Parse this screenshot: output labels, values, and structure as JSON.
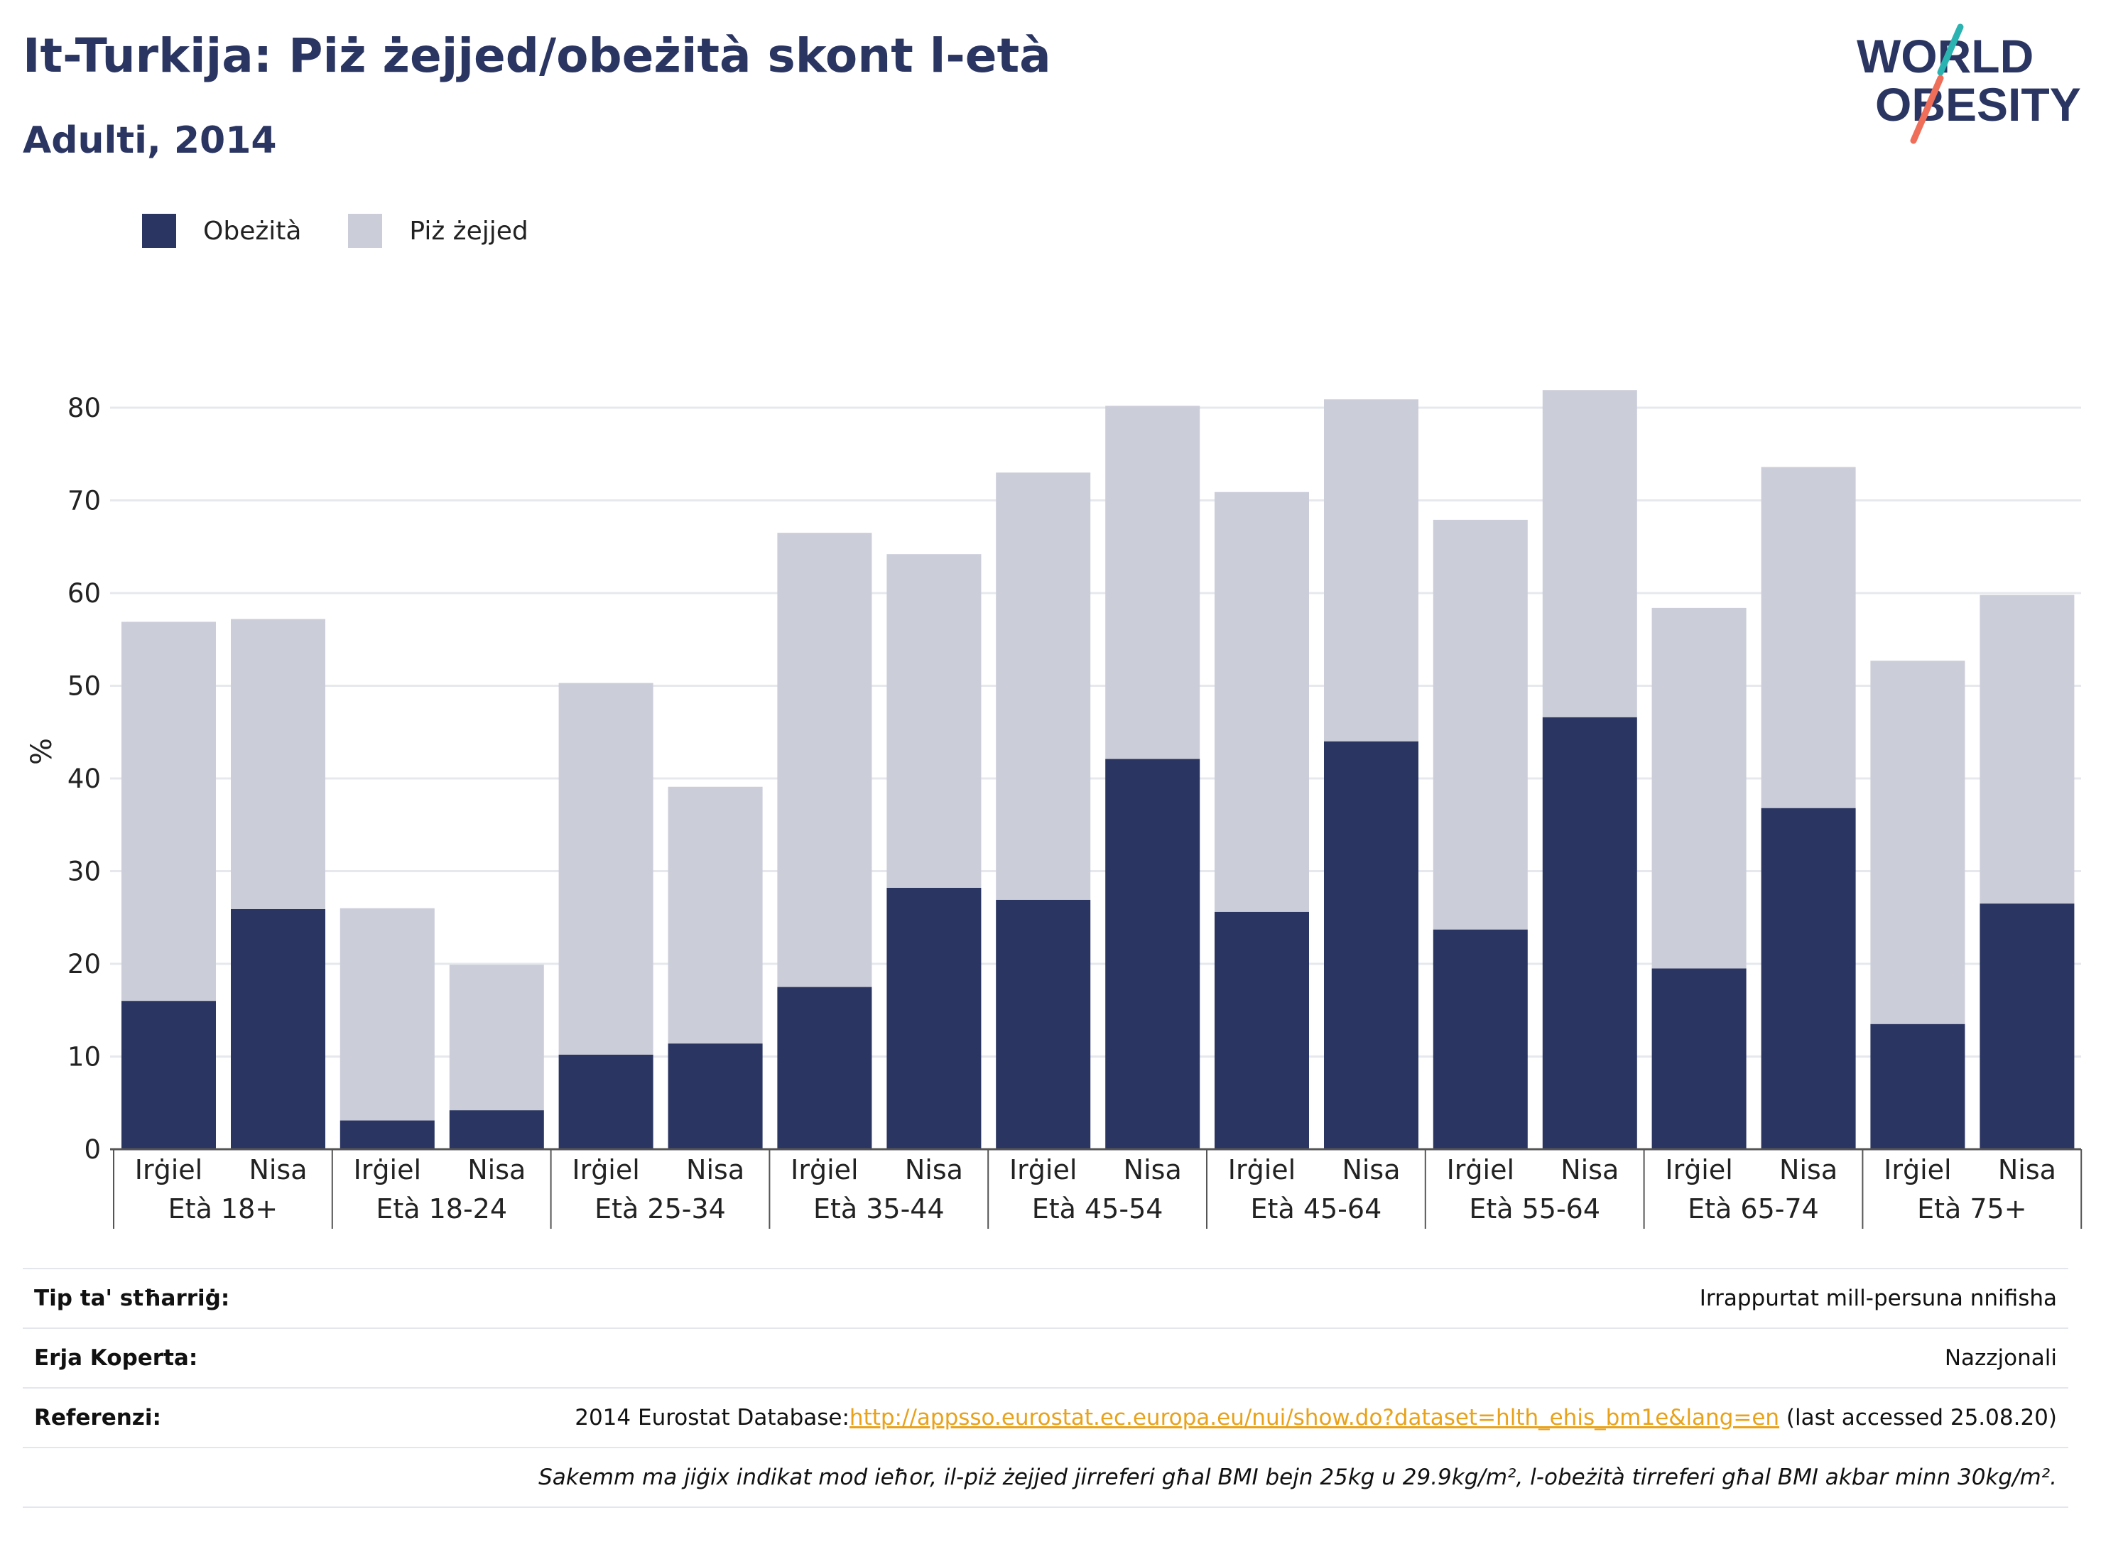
{
  "title": "It-Turkija: Piż żejjed/obeżità skont l-età",
  "subtitle": "Adulti, 2014",
  "logo": {
    "line1": "WORLD",
    "line2": "OBESITY"
  },
  "colors": {
    "obesity": "#2a3561",
    "overweight": "#cbcdd9",
    "text": "#2a3561",
    "link": "#e8a21b"
  },
  "legend": [
    {
      "label": "Obeżità",
      "color": "#2a3561"
    },
    {
      "label": "Piż żejjed",
      "color": "#cbcdd9"
    }
  ],
  "chart_data": {
    "type": "bar",
    "stacked": true,
    "ylabel": "%",
    "ylim": [
      0,
      82
    ],
    "yticks": [
      0,
      10,
      20,
      30,
      40,
      50,
      60,
      70,
      80
    ],
    "grid": true,
    "legend_position": "top-left",
    "groups": [
      "Età 18+",
      "Età 18-24",
      "Età 25-34",
      "Età 35-44",
      "Età 45-54",
      "Età 45-64",
      "Età 55-64",
      "Età 65-74",
      "Età 75+"
    ],
    "subcategories": [
      "Irġiel",
      "Nisa"
    ],
    "series": [
      {
        "name": "Obeżità",
        "values": [
          16,
          25.9,
          3.1,
          4.2,
          10.2,
          11.4,
          17.5,
          28.2,
          26.9,
          42.1,
          25.6,
          44,
          23.7,
          46.6,
          19.5,
          36.8,
          13.5,
          26.5
        ]
      },
      {
        "name": "Piż żejjed",
        "values": [
          40.9,
          31.3,
          22.9,
          15.7,
          40.1,
          27.7,
          49,
          36,
          46.1,
          38.1,
          45.3,
          36.9,
          44.2,
          35.3,
          38.9,
          36.8,
          39.2,
          33.3
        ]
      }
    ]
  },
  "info": {
    "rows": [
      {
        "label": "Tip ta' stħarriġ:",
        "value": "Irrappurtat mill-persuna nnifisha"
      },
      {
        "label": "Erja Koperta:",
        "value": "Nazzjonali"
      },
      {
        "label": "Referenzi:",
        "value_prefix": "2014 Eurostat Database:",
        "link": "http://appsso.eurostat.ec.europa.eu/nui/show.do?dataset=hlth_ehis_bm1e&lang=en",
        "value_suffix": " (last accessed 25.08.20)"
      }
    ],
    "note": "Sakemm ma jiġix indikat mod ieħor, il-piż żejjed jirreferi għal BMI bejn 25kg u 29.9kg/m², l-obeżità tirreferi għal BMI akbar minn 30kg/m²."
  }
}
